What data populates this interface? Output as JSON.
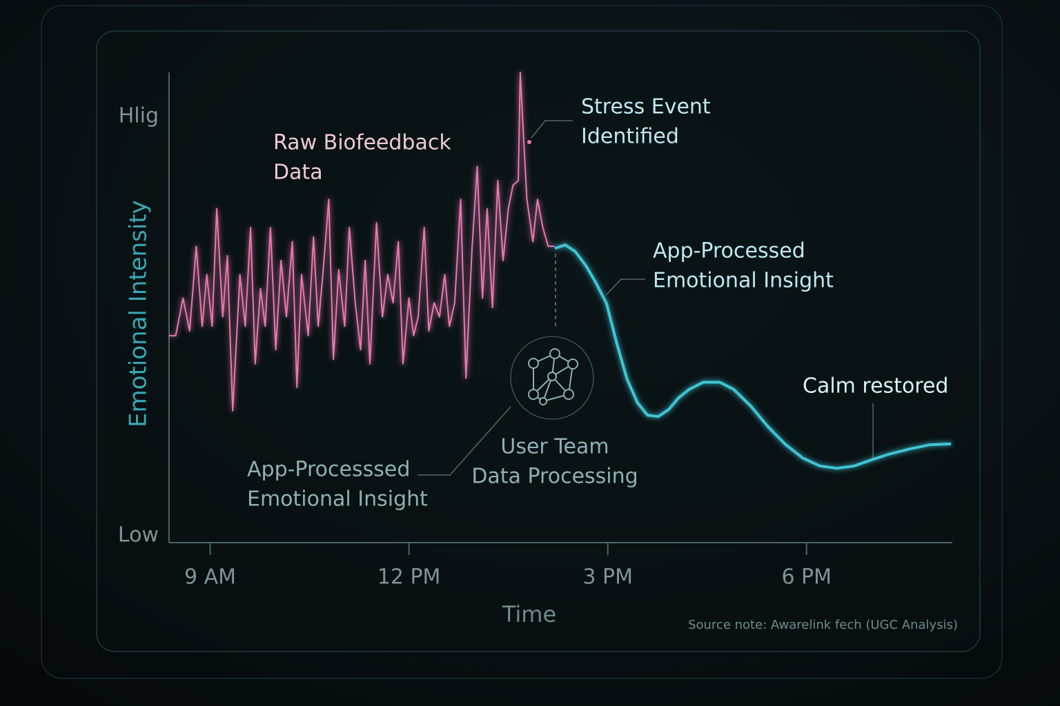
{
  "chart_data": {
    "type": "line",
    "xlabel": "Time",
    "ylabel": "Emotional Intensity",
    "xlim": [
      8.38,
      20.2
    ],
    "ylim": [
      0,
      100
    ],
    "xticks": [
      {
        "value": 9,
        "label": "9 AM"
      },
      {
        "value": 12,
        "label": "12 PM"
      },
      {
        "value": 15,
        "label": "3 PM"
      },
      {
        "value": 18,
        "label": "6 PM"
      }
    ],
    "yticks": [
      {
        "value": 0,
        "label": "Low"
      },
      {
        "value": 95,
        "label": "Hlig"
      }
    ],
    "series": [
      {
        "color": "#e878b0",
        "x": [
          8.38,
          8.48,
          8.59,
          8.69,
          8.79,
          8.88,
          8.95,
          9.03,
          9.1,
          9.19,
          9.26,
          9.34,
          9.45,
          9.53,
          9.61,
          9.68,
          9.76,
          9.83,
          9.91,
          9.99,
          10.07,
          10.15,
          10.24,
          10.31,
          10.38,
          10.48,
          10.56,
          10.63,
          10.7,
          10.79,
          10.86,
          10.94,
          11.03,
          11.1,
          11.19,
          11.27,
          11.34,
          11.41,
          11.51,
          11.6,
          11.68,
          11.76,
          11.84,
          11.91,
          12.0,
          12.07,
          12.14,
          12.23,
          12.3,
          12.38,
          12.46,
          12.54,
          12.61,
          12.69,
          12.78,
          12.86,
          12.95,
          13.03,
          13.11,
          13.18,
          13.26,
          13.34,
          13.42,
          13.5,
          13.57,
          13.65,
          13.68,
          13.73,
          13.78,
          13.87,
          13.94,
          14.02,
          14.1,
          14.2
        ],
        "values": [
          44,
          44,
          52,
          45,
          63,
          46,
          57,
          46,
          71,
          48,
          61,
          28,
          57,
          46,
          67,
          38,
          54,
          46,
          67,
          41,
          60,
          48,
          64,
          33,
          57,
          44,
          65,
          46,
          57,
          73,
          39,
          58,
          46,
          67,
          51,
          41,
          60,
          38,
          68,
          48,
          57,
          51,
          64,
          38,
          52,
          44,
          48,
          67,
          45,
          51,
          48,
          57,
          46,
          51,
          73,
          35,
          62,
          80,
          52,
          71,
          50,
          77,
          60,
          71,
          76,
          77,
          100,
          86,
          73,
          64,
          73,
          67,
          63,
          63
        ]
      },
      {
        "color": "#3fc4d4",
        "x": [
          14.2,
          14.36,
          14.51,
          14.67,
          14.82,
          14.98,
          15.14,
          15.29,
          15.45,
          15.6,
          15.76,
          15.92,
          16.07,
          16.23,
          16.44,
          16.69,
          16.9,
          17.16,
          17.42,
          17.68,
          17.94,
          18.2,
          18.46,
          18.72,
          18.98,
          19.24,
          19.55,
          19.86,
          20.18
        ],
        "values": [
          62.6,
          63.3,
          61.9,
          58.9,
          55.3,
          50.9,
          42.2,
          34.8,
          29.7,
          27.1,
          26.8,
          28.3,
          30.8,
          32.6,
          34.1,
          34.1,
          32.6,
          29.0,
          24.6,
          20.9,
          18.0,
          16.3,
          15.8,
          16.3,
          17.6,
          18.8,
          19.9,
          20.8,
          21.0
        ]
      }
    ],
    "annotations": [
      {
        "lines": [
          "Raw Biofeedback",
          "Data"
        ]
      },
      {
        "lines": [
          "Stress Event",
          "Identified"
        ]
      },
      {
        "lines": [
          "App-Processed",
          "Emotional Insight"
        ]
      },
      {
        "lines": [
          "Calm restored"
        ]
      },
      {
        "lines": [
          "App-Processsed",
          "Emotional Insight"
        ]
      },
      {
        "lines": [
          "User Team",
          "Data Processing"
        ]
      }
    ],
    "source": "Source note: Awarelink fech (UGC Analysis)"
  }
}
